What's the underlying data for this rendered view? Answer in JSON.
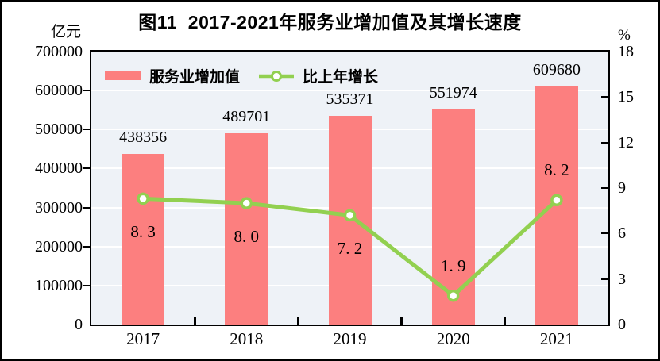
{
  "figure": {
    "title": "图11  2017-2021年服务业增加值及其增长速度"
  },
  "left_axis": {
    "unit": "亿元",
    "tick_labels": [
      "0",
      "100000",
      "200000",
      "300000",
      "400000",
      "500000",
      "600000",
      "700000"
    ]
  },
  "right_axis": {
    "unit": "%",
    "tick_labels": [
      "0",
      "3",
      "6",
      "9",
      "12",
      "15",
      "18"
    ]
  },
  "legend": {
    "bar_label": "服务业增加值",
    "line_label": "比上年增长"
  },
  "colors": {
    "bar": "#fc7f7f",
    "line": "#92d050",
    "marker_fill": "#ffffff",
    "plot_background": "#eef2f7",
    "gridline": "#ffffff",
    "axis": "#000000",
    "text": "#000000"
  },
  "chart_data": {
    "type": "bar+line",
    "title": "图11  2017-2021年服务业增加值及其增长速度",
    "categories": [
      "2017",
      "2018",
      "2019",
      "2020",
      "2021"
    ],
    "series": [
      {
        "name": "服务业增加值",
        "type": "bar",
        "axis": "left",
        "unit": "亿元",
        "color": "#fc7f7f",
        "values": [
          438356,
          489701,
          535371,
          551974,
          609680
        ],
        "data_labels": [
          "438356",
          "489701",
          "535371",
          "551974",
          "609680"
        ]
      },
      {
        "name": "比上年增长",
        "type": "line",
        "axis": "right",
        "unit": "%",
        "color": "#92d050",
        "values": [
          8.3,
          8.0,
          7.2,
          1.9,
          8.2
        ],
        "data_labels": [
          "8. 3",
          "8. 0",
          "7. 2",
          "1. 9",
          "8. 2"
        ],
        "label_positions": [
          "below",
          "below",
          "below",
          "above",
          "above"
        ]
      }
    ],
    "left_axis": {
      "label": "亿元",
      "range": [
        0,
        700000
      ],
      "tick_interval": 100000
    },
    "right_axis": {
      "label": "%",
      "range": [
        0,
        18
      ],
      "tick_interval": 3
    },
    "grid": true,
    "legend_position": "top-left-inside"
  }
}
